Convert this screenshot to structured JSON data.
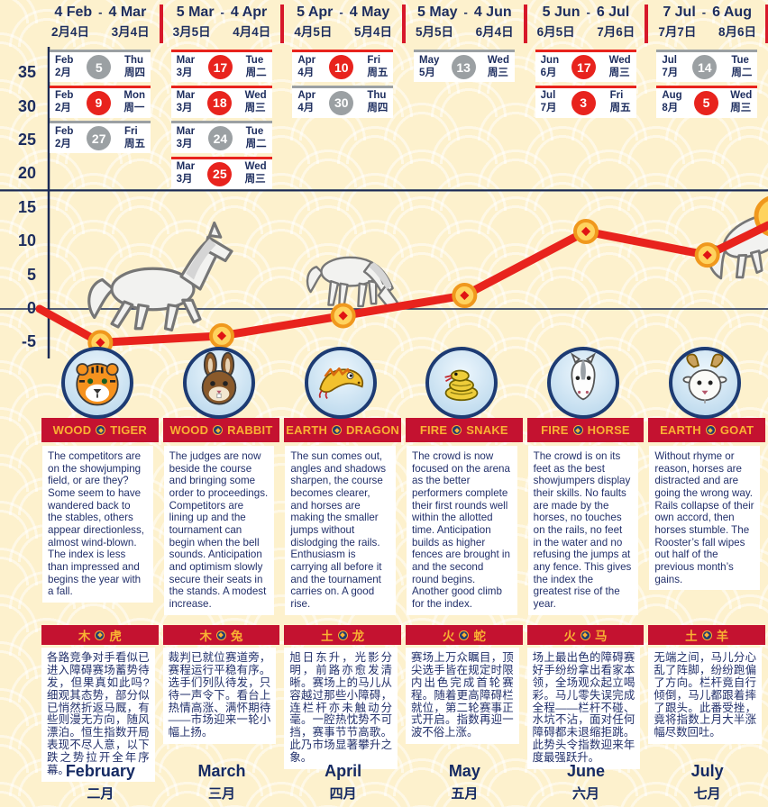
{
  "page": {
    "bg": "#fdf1cd",
    "navy": "#1d2d5e",
    "separator_red": "#d7182a",
    "banner_red": "#c41230",
    "banner_gold": "#f9b233",
    "date_red": "#e8231d",
    "date_gray": "#9ba0a3",
    "separator": "-"
  },
  "y_axis": [
    "35",
    "30",
    "25",
    "20",
    "15",
    "10",
    "5",
    "0",
    "-5"
  ],
  "chart_data": {
    "type": "line",
    "title": "",
    "x": [
      "Feb",
      "Mar",
      "Apr",
      "May",
      "Jun",
      "Jul"
    ],
    "values": [
      -5,
      -4,
      -1,
      2,
      11.5,
      8
    ],
    "start_value": 0,
    "end_value": 12.4,
    "ylim": [
      -7,
      37
    ],
    "yticks": [
      35,
      30,
      25,
      20,
      15,
      10,
      5,
      0,
      -5
    ],
    "hlines": [
      {
        "value": 17.6,
        "width": 2.2
      },
      {
        "value": 0,
        "width": 1.6
      }
    ],
    "grid": false,
    "legend": "none",
    "line_color": "#e8231d",
    "marker": "gold-coin-with-red-diamond",
    "decorations": [
      "galloping-horse",
      "grazing-horse",
      "jumping-horse",
      "gold-coin-right-edge"
    ]
  },
  "columns": [
    {
      "range": {
        "start_en": "4 Feb",
        "end_en": "4 Mar",
        "start_cn": "2月4日",
        "end_cn": "3月4日"
      },
      "dates": [
        {
          "month_en": "Feb",
          "month_cn": "2月",
          "day": "5",
          "weekday_en": "Thu",
          "weekday_cn": "周四",
          "color": "gray"
        },
        {
          "month_en": "Feb",
          "month_cn": "2月",
          "day": "9",
          "weekday_en": "Mon",
          "weekday_cn": "周一",
          "color": "red"
        },
        {
          "month_en": "Feb",
          "month_cn": "2月",
          "day": "27",
          "weekday_en": "Fri",
          "weekday_cn": "周五",
          "color": "gray"
        }
      ],
      "zodiac": {
        "element_en": "WOOD",
        "animal_en": "TIGER",
        "element_cn": "木",
        "animal_cn": "虎",
        "animal": "tiger"
      },
      "text_en": "The competitors are on the showjumping field, or are they? Some seem to have wandered back to the stables, others appear directionless, almost wind-blown. The index is less than impressed and begins the year with a fall.",
      "text_cn": "各路竞争对手看似已进入障碍赛场蓄势待发，但果真如此吗?细观其态势，部分似已悄然折返马厩，有些则漫无方向，随风漂泊。恒生指数开局表现不尽人意，以下跌之势拉开全年序幕。",
      "month_en": "February",
      "month_cn": "二月"
    },
    {
      "range": {
        "start_en": "5 Mar",
        "end_en": "4 Apr",
        "start_cn": "3月5日",
        "end_cn": "4月4日"
      },
      "dates": [
        {
          "month_en": "Mar",
          "month_cn": "3月",
          "day": "17",
          "weekday_en": "Tue",
          "weekday_cn": "周二",
          "color": "red"
        },
        {
          "month_en": "Mar",
          "month_cn": "3月",
          "day": "18",
          "weekday_en": "Wed",
          "weekday_cn": "周三",
          "color": "red"
        },
        {
          "month_en": "Mar",
          "month_cn": "3月",
          "day": "24",
          "weekday_en": "Tue",
          "weekday_cn": "周二",
          "color": "gray"
        },
        {
          "month_en": "Mar",
          "month_cn": "3月",
          "day": "25",
          "weekday_en": "Wed",
          "weekday_cn": "周三",
          "color": "red"
        }
      ],
      "zodiac": {
        "element_en": "WOOD",
        "animal_en": "RABBIT",
        "element_cn": "木",
        "animal_cn": "兔",
        "animal": "rabbit"
      },
      "text_en": "The judges are now beside the course and bringing some order to proceedings. Competitors are lining up and the tournament can begin when the bell sounds. Anticipation and optimism slowly secure their seats in the stands. A modest increase.",
      "text_cn": "裁判已就位赛道旁，赛程运行平稳有序。选手们列队待发，只待一声令下。看台上热情高涨、满怀期待——市场迎来一轮小幅上扬。",
      "month_en": "March",
      "month_cn": "三月"
    },
    {
      "range": {
        "start_en": "5 Apr",
        "end_en": "4 May",
        "start_cn": "4月5日",
        "end_cn": "5月4日"
      },
      "dates": [
        {
          "month_en": "Apr",
          "month_cn": "4月",
          "day": "10",
          "weekday_en": "Fri",
          "weekday_cn": "周五",
          "color": "red"
        },
        {
          "month_en": "Apr",
          "month_cn": "4月",
          "day": "30",
          "weekday_en": "Thu",
          "weekday_cn": "周四",
          "color": "gray"
        }
      ],
      "zodiac": {
        "element_en": "EARTH",
        "animal_en": "DRAGON",
        "element_cn": "土",
        "animal_cn": "龙",
        "animal": "dragon"
      },
      "text_en": "The sun comes out, angles and shadows sharpen, the course becomes clearer, and horses are making the smaller jumps without dislodging the rails. Enthusiasm is carrying all before it and the tournament carries on. A good rise.",
      "text_cn": "旭日东升，光影分明，前路亦愈发清晰。赛场上的马儿从容越过那些小障碍，连栏杆亦未触动分毫。一腔热忱势不可挡，赛事节节高歌。此乃市场显著攀升之象。",
      "month_en": "April",
      "month_cn": "四月"
    },
    {
      "range": {
        "start_en": "5 May",
        "end_en": "4 Jun",
        "start_cn": "5月5日",
        "end_cn": "6月4日"
      },
      "dates": [
        {
          "month_en": "May",
          "month_cn": "5月",
          "day": "13",
          "weekday_en": "Wed",
          "weekday_cn": "周三",
          "color": "gray"
        }
      ],
      "zodiac": {
        "element_en": "FIRE",
        "animal_en": "SNAKE",
        "element_cn": "火",
        "animal_cn": "蛇",
        "animal": "snake"
      },
      "text_en": "The crowd is now focused on the arena as the better performers complete their first rounds well within the allotted time. Anticipation builds as higher fences are brought in and the second round begins. Another good climb for the index.",
      "text_cn": "赛场上万众瞩目，顶尖选手皆在规定时限内出色完成首轮赛程。随着更高障碍栏就位，第二轮赛事正式开启。指数再迎一波不俗上涨。",
      "month_en": "May",
      "month_cn": "五月"
    },
    {
      "range": {
        "start_en": "5 Jun",
        "end_en": "6 Jul",
        "start_cn": "6月5日",
        "end_cn": "7月6日"
      },
      "dates": [
        {
          "month_en": "Jun",
          "month_cn": "6月",
          "day": "17",
          "weekday_en": "Wed",
          "weekday_cn": "周三",
          "color": "red"
        },
        {
          "month_en": "Jul",
          "month_cn": "7月",
          "day": "3",
          "weekday_en": "Fri",
          "weekday_cn": "周五",
          "color": "red"
        }
      ],
      "zodiac": {
        "element_en": "FIRE",
        "animal_en": "HORSE",
        "element_cn": "火",
        "animal_cn": "马",
        "animal": "horse"
      },
      "text_en": "The crowd is on its feet as the best showjumpers display their skills. No faults are made by the horses, no touches on the rails, no feet in the water and no refusing the jumps at any fence. This gives the index the greatest rise of the year.",
      "text_cn": "场上最出色的障碍赛好手纷纷拿出看家本领，全场观众起立喝彩。马儿零失误完成全程——栏杆不碰、水坑不沾，面对任何障碍都未退缩拒跳。此势头令指数迎来年度最强跃升。",
      "month_en": "June",
      "month_cn": "六月"
    },
    {
      "range": {
        "start_en": "7 Jul",
        "end_en": "6 Aug",
        "start_cn": "7月7日",
        "end_cn": "8月6日"
      },
      "dates": [
        {
          "month_en": "Jul",
          "month_cn": "7月",
          "day": "14",
          "weekday_en": "Tue",
          "weekday_cn": "周二",
          "color": "gray"
        },
        {
          "month_en": "Aug",
          "month_cn": "8月",
          "day": "5",
          "weekday_en": "Wed",
          "weekday_cn": "周三",
          "color": "red"
        }
      ],
      "zodiac": {
        "element_en": "EARTH",
        "animal_en": "GOAT",
        "element_cn": "土",
        "animal_cn": "羊",
        "animal": "goat"
      },
      "text_en": "Without rhyme or reason, horses are distracted and are going the wrong way. Rails collapse of their own accord, then horses stumble. The Rooster’s fall wipes out half of the previous month’s gains.",
      "text_cn": "无端之间，马儿分心乱了阵脚，纷纷跑偏了方向。栏杆竟自行倾倒，马儿都跟着摔了跟头。此番受挫，竟将指数上月大半涨幅尽数回吐。",
      "month_en": "July",
      "month_cn": "七月"
    }
  ]
}
